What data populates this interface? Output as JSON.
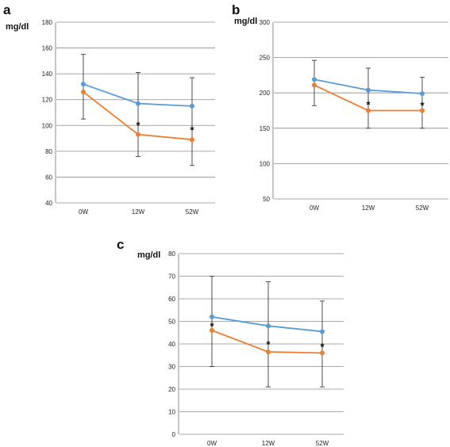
{
  "colors": {
    "blue": "#5b9bd5",
    "orange": "#ed7d31",
    "grid": "#8c8c8c",
    "error": "#222222"
  },
  "chart_data": [
    {
      "panel": "a",
      "type": "line",
      "ylabel": "mg/dl",
      "categories": [
        "0W",
        "12W",
        "52W"
      ],
      "ylim": [
        40,
        180
      ],
      "yticks": [
        40,
        60,
        80,
        100,
        120,
        140,
        160,
        180
      ],
      "grid": true,
      "series": [
        {
          "color": "blue",
          "values": [
            132,
            117,
            115
          ]
        },
        {
          "color": "orange",
          "values": [
            126,
            93,
            89
          ],
          "error_low": [
            105,
            76,
            69
          ],
          "error_high": [
            155,
            141,
            137
          ]
        }
      ],
      "significance": [
        "",
        "*",
        "*"
      ]
    },
    {
      "panel": "b",
      "type": "line",
      "ylabel": "mg/dl",
      "categories": [
        "0W",
        "12W",
        "52W"
      ],
      "ylim": [
        50,
        300
      ],
      "yticks": [
        50,
        100,
        150,
        200,
        250,
        300
      ],
      "grid": true,
      "series": [
        {
          "color": "blue",
          "values": [
            219,
            204,
            199
          ]
        },
        {
          "color": "orange",
          "values": [
            211,
            175,
            175
          ],
          "error_low": [
            182,
            150,
            150
          ],
          "error_high": [
            246,
            235,
            222
          ]
        }
      ],
      "significance": [
        "",
        "*",
        "*"
      ]
    },
    {
      "panel": "c",
      "type": "line",
      "ylabel": "mg/dl",
      "categories": [
        "0W",
        "12W",
        "52W"
      ],
      "ylim": [
        0,
        80
      ],
      "yticks": [
        0,
        10,
        20,
        30,
        40,
        50,
        60,
        70,
        80
      ],
      "grid": true,
      "series": [
        {
          "color": "blue",
          "values": [
            52,
            48,
            45.5
          ]
        },
        {
          "color": "orange",
          "values": [
            46,
            36.5,
            36
          ],
          "error_low": [
            30,
            21,
            21
          ],
          "error_high": [
            70,
            67.5,
            59
          ]
        }
      ],
      "significance": [
        "*",
        "*",
        "*"
      ]
    }
  ]
}
